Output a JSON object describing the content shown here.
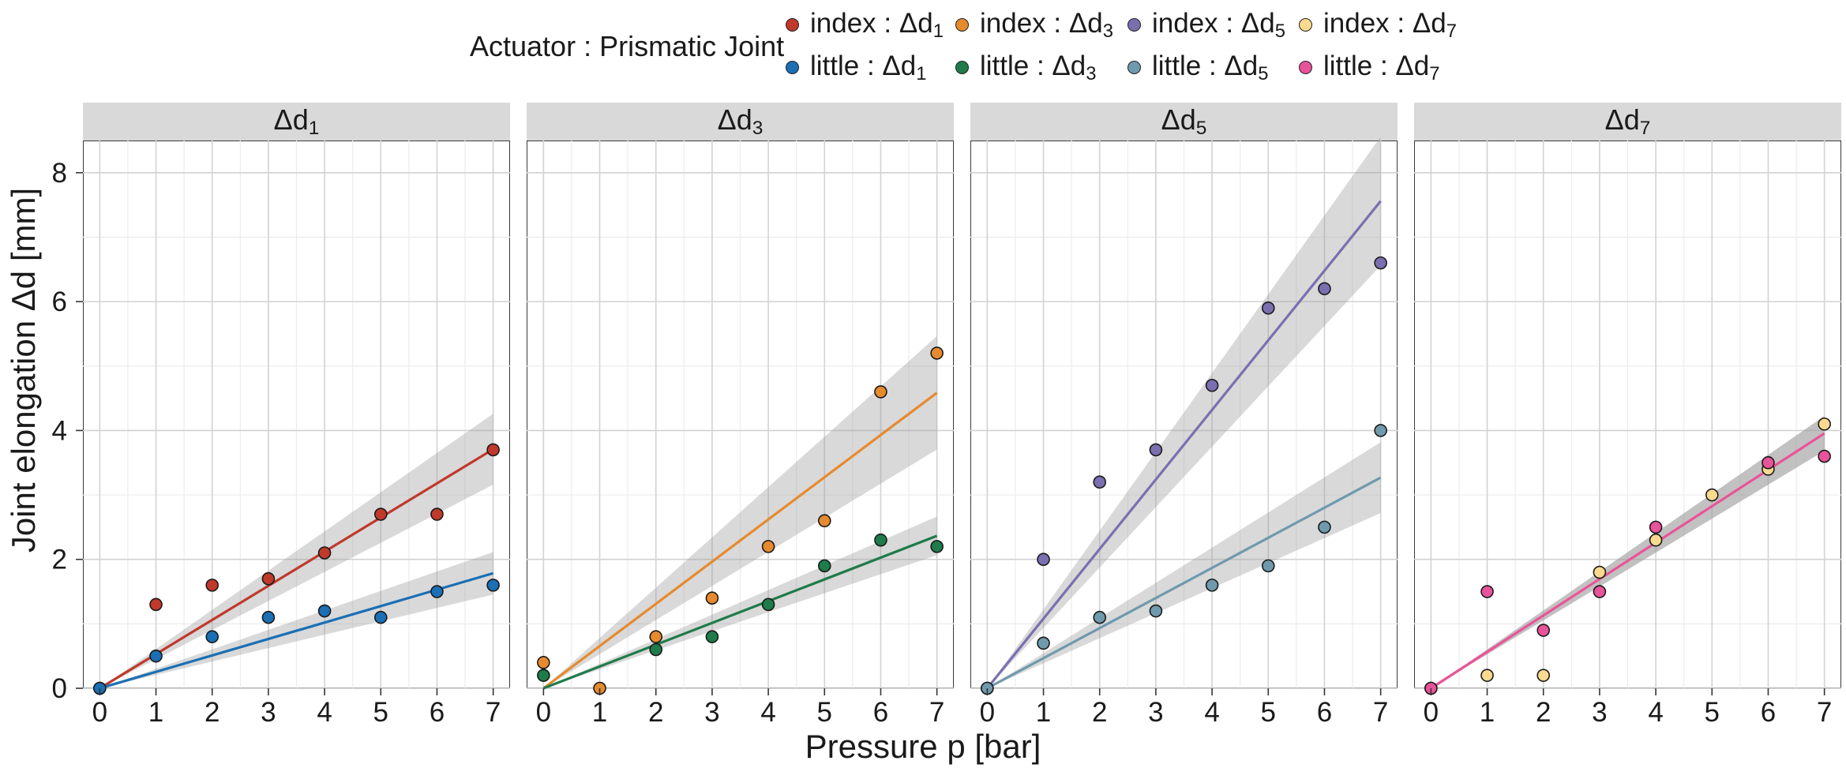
{
  "legend": {
    "title": "Actuator : Prismatic Joint",
    "items": [
      {
        "label": "index : Δd",
        "sub": "1",
        "color": "#C0392B"
      },
      {
        "label": "index : Δd",
        "sub": "3",
        "color": "#E68A2E"
      },
      {
        "label": "index : Δd",
        "sub": "5",
        "color": "#7B6FB0"
      },
      {
        "label": "index : Δd",
        "sub": "7",
        "color": "#FBDA8F"
      },
      {
        "label": "little : Δd",
        "sub": "1",
        "color": "#1A6FB5"
      },
      {
        "label": "little : Δd",
        "sub": "3",
        "color": "#1E7B4A"
      },
      {
        "label": "little : Δd",
        "sub": "5",
        "color": "#6F9AAD"
      },
      {
        "label": "little : Δd",
        "sub": "7",
        "color": "#E8539A"
      }
    ]
  },
  "axes": {
    "xlabel": "Pressure p [bar]",
    "ylabel": "Joint elongation Δd [mm]"
  },
  "chart_data": [
    {
      "type": "scatter",
      "facet": "Δd",
      "facet_sub": "1",
      "x": [
        0,
        1,
        2,
        3,
        4,
        5,
        6,
        7
      ],
      "xlim": [
        -0.3,
        7.3
      ],
      "ylim": [
        0,
        8.5
      ],
      "xticks": [
        0,
        1,
        2,
        3,
        4,
        5,
        6,
        7
      ],
      "yticks": [
        0,
        2,
        4,
        6,
        8
      ],
      "grid": true,
      "series": [
        {
          "name": "index : Δd1",
          "color": "#C0392B",
          "values": [
            0,
            1.3,
            1.6,
            1.7,
            2.1,
            2.7,
            2.7,
            3.7
          ],
          "fit_slope": 0.53,
          "band_half_width_at_7": 0.55
        },
        {
          "name": "little : Δd1",
          "color": "#1A6FB5",
          "values": [
            0,
            0.5,
            0.8,
            1.1,
            1.2,
            1.1,
            1.5,
            1.6
          ],
          "fit_slope": 0.255,
          "band_half_width_at_7": 0.33
        }
      ]
    },
    {
      "type": "scatter",
      "facet": "Δd",
      "facet_sub": "3",
      "x": [
        0,
        1,
        2,
        3,
        4,
        5,
        6,
        7
      ],
      "xlim": [
        -0.3,
        7.3
      ],
      "ylim": [
        0,
        8.5
      ],
      "xticks": [
        0,
        1,
        2,
        3,
        4,
        5,
        6,
        7
      ],
      "yticks": [
        0,
        2,
        4,
        6,
        8
      ],
      "grid": true,
      "series": [
        {
          "name": "index : Δd3",
          "color": "#E68A2E",
          "values": [
            0.4,
            0,
            0.8,
            1.4,
            2.2,
            2.6,
            4.6,
            5.2
          ],
          "fit_slope": 0.655,
          "band_half_width_at_7": 0.88
        },
        {
          "name": "little : Δd3",
          "color": "#1E7B4A",
          "values": [
            0.2,
            null,
            0.6,
            0.8,
            1.3,
            1.9,
            2.3,
            2.2
          ],
          "fit_slope": 0.338,
          "band_half_width_at_7": 0.3
        }
      ]
    },
    {
      "type": "scatter",
      "facet": "Δd",
      "facet_sub": "5",
      "x": [
        0,
        1,
        2,
        3,
        4,
        5,
        6,
        7
      ],
      "xlim": [
        -0.3,
        7.3
      ],
      "ylim": [
        0,
        8.5
      ],
      "xticks": [
        0,
        1,
        2,
        3,
        4,
        5,
        6,
        7
      ],
      "yticks": [
        0,
        2,
        4,
        6,
        8
      ],
      "grid": true,
      "series": [
        {
          "name": "index : Δd5",
          "color": "#7B6FB0",
          "values": [
            0,
            2.0,
            3.2,
            3.7,
            4.7,
            5.9,
            6.2,
            6.6
          ],
          "fit_slope": 1.08,
          "band_half_width_at_7": 1.0
        },
        {
          "name": "little : Δd5",
          "color": "#6F9AAD",
          "values": [
            0,
            0.7,
            1.1,
            1.2,
            1.6,
            1.9,
            2.5,
            4.0
          ],
          "fit_slope": 0.467,
          "band_half_width_at_7": 0.55
        }
      ]
    },
    {
      "type": "scatter",
      "facet": "Δd",
      "facet_sub": "7",
      "x": [
        0,
        1,
        2,
        3,
        4,
        5,
        6,
        7
      ],
      "xlim": [
        -0.3,
        7.3
      ],
      "ylim": [
        0,
        8.5
      ],
      "xticks": [
        0,
        1,
        2,
        3,
        4,
        5,
        6,
        7
      ],
      "yticks": [
        0,
        2,
        4,
        6,
        8
      ],
      "grid": true,
      "series": [
        {
          "name": "index : Δd7",
          "color": "#FBDA8F",
          "values": [
            0,
            0.2,
            0.2,
            1.8,
            2.3,
            3.0,
            3.4,
            4.1
          ],
          "fit_slope": 0.565,
          "band_half_width_at_7": 0.27
        },
        {
          "name": "little : Δd7",
          "color": "#E8539A",
          "values": [
            0,
            1.5,
            0.9,
            1.5,
            2.5,
            null,
            3.5,
            3.6
          ],
          "fit_slope": 0.565,
          "band_half_width_at_7": 0.27
        }
      ]
    }
  ]
}
